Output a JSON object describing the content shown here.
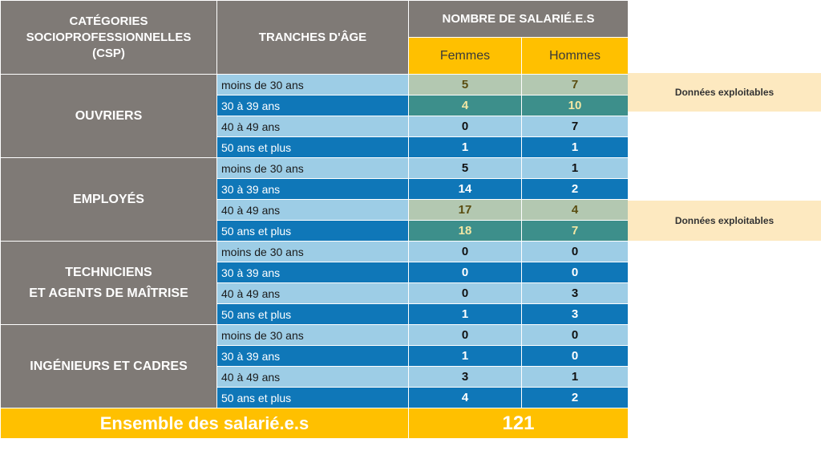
{
  "headers": {
    "csp_line1": "CATÉGORIES",
    "csp_line2": "SOCIOPROFESSIONNELLES",
    "csp_line3": "(CSP)",
    "age": "TRANCHES D'ÂGE",
    "count": "NOMBRE DE SALARIÉ.E.S",
    "women": "Femmes",
    "men": "Hommes"
  },
  "groups": [
    {
      "label_line1": "OUVRIERS",
      "label_line2": "",
      "rows": [
        {
          "age": "moins de 30 ans",
          "women": "5",
          "men": "7"
        },
        {
          "age": "30 à 39 ans",
          "women": "4",
          "men": "10"
        },
        {
          "age": "40 à 49 ans",
          "women": "0",
          "men": "7"
        },
        {
          "age": "50 ans et plus",
          "women": "1",
          "men": "1"
        }
      ]
    },
    {
      "label_line1": "EMPLOYÉS",
      "label_line2": "",
      "rows": [
        {
          "age": "moins de 30 ans",
          "women": "5",
          "men": "1"
        },
        {
          "age": "30 à 39 ans",
          "women": "14",
          "men": "2"
        },
        {
          "age": "40 à 49 ans",
          "women": "17",
          "men": "4"
        },
        {
          "age": "50 ans et plus",
          "women": "18",
          "men": "7"
        }
      ]
    },
    {
      "label_line1": "TECHNICIENS",
      "label_line2": "ET AGENTS DE MAÎTRISE",
      "rows": [
        {
          "age": "moins de 30 ans",
          "women": "0",
          "men": "0"
        },
        {
          "age": "30 à 39 ans",
          "women": "0",
          "men": "0"
        },
        {
          "age": "40 à 49 ans",
          "women": "0",
          "men": "3"
        },
        {
          "age": "50 ans et plus",
          "women": "1",
          "men": "3"
        }
      ]
    },
    {
      "label_line1": "INGÉNIEURS ET CADRES",
      "label_line2": "",
      "rows": [
        {
          "age": "moins de 30 ans",
          "women": "0",
          "men": "0"
        },
        {
          "age": "30 à 39 ans",
          "women": "1",
          "men": "0"
        },
        {
          "age": "40 à 49 ans",
          "women": "3",
          "men": "1"
        },
        {
          "age": "50 ans et plus",
          "women": "4",
          "men": "2"
        }
      ]
    }
  ],
  "total": {
    "label": "Ensemble des salarié.e.s",
    "value": "121"
  },
  "notes": [
    {
      "text": "Données exploitables"
    },
    {
      "text": "Données exploitables"
    }
  ],
  "colors": {
    "header_grey": "#7f7a76",
    "gold": "#ffc000",
    "row_light": "#9dcde6",
    "row_dark": "#0f77b8",
    "highlight_light": "#b3c8b1",
    "highlight_dark": "#3d8f8b",
    "note_bg": "#fde9c0"
  }
}
